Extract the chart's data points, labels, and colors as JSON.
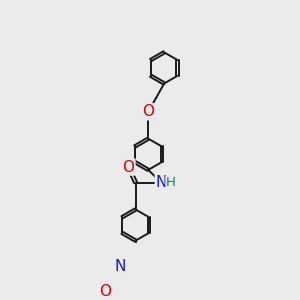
{
  "bg_color": "#ebebeb",
  "bond_color": "#1a1a1a",
  "bond_width": 1.4,
  "dbo": 0.045,
  "r_hex": 0.55,
  "atom_colors": {
    "O": "#e00000",
    "N": "#1a1acc",
    "H": "#008080"
  },
  "font_size": 11,
  "font_size_H": 9.5
}
